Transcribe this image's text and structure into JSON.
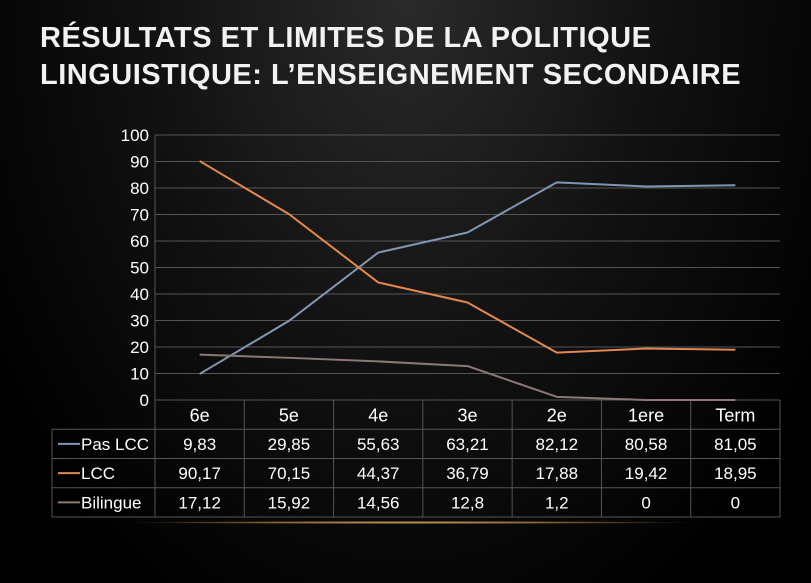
{
  "slide": {
    "title_line1": "RÉSULTATS ET LIMITES DE LA POLITIQUE",
    "title_line2": "LINGUISTIQUE: L’ENSEIGNEMENT SECONDAIRE"
  },
  "chart_data": {
    "type": "line",
    "title": "",
    "xlabel": "",
    "ylabel": "",
    "ylim": [
      0,
      100
    ],
    "yticks": [
      0,
      10,
      20,
      30,
      40,
      50,
      60,
      70,
      80,
      90,
      100
    ],
    "grid": true,
    "legend": "data-table",
    "categories": [
      "6e",
      "5e",
      "4e",
      "3e",
      "2e",
      "1ere",
      "Term"
    ],
    "series": [
      {
        "name": "Pas LCC",
        "color": "#8096b4",
        "values": [
          9.83,
          29.85,
          55.63,
          63.21,
          82.12,
          80.58,
          81.05
        ],
        "labels": [
          "9,83",
          "29,85",
          "55,63",
          "63,21",
          "82,12",
          "80,58",
          "81,05"
        ]
      },
      {
        "name": "LCC",
        "color": "#e2884f",
        "values": [
          90.17,
          70.15,
          44.37,
          36.79,
          17.88,
          19.42,
          18.95
        ],
        "labels": [
          "90,17",
          "70,15",
          "44,37",
          "36,79",
          "17,88",
          "19,42",
          "18,95"
        ]
      },
      {
        "name": "Bilingue",
        "color": "#8c7874",
        "values": [
          17.12,
          15.92,
          14.56,
          12.8,
          1.2,
          0,
          0
        ],
        "labels": [
          "17,12",
          "15,92",
          "14,56",
          "12,8",
          "1,2",
          "0",
          "0"
        ]
      }
    ]
  }
}
